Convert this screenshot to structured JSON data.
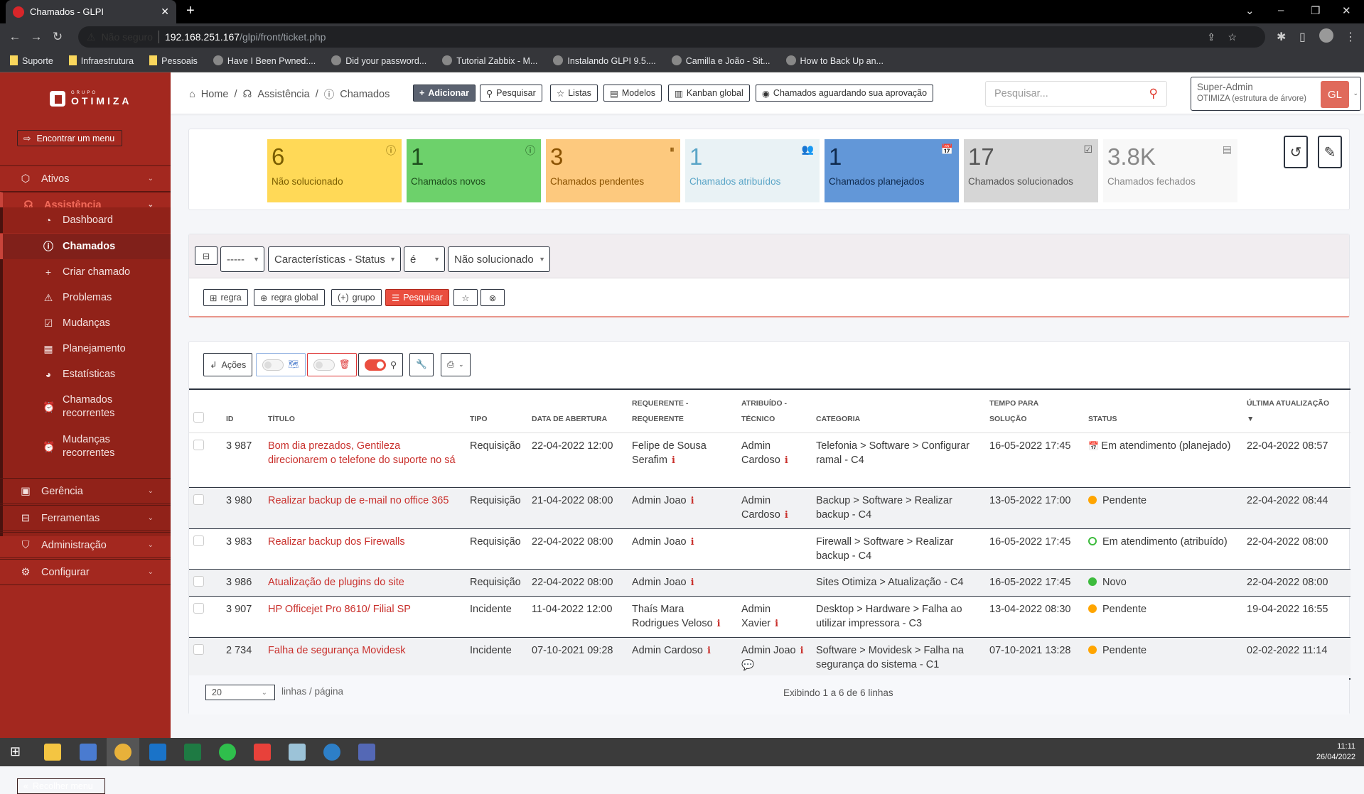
{
  "browser": {
    "tab_title": "Chamados - GLPI",
    "security_label": "Não seguro",
    "url_host": "192.168.251.167",
    "url_path": "/glpi/front/ticket.php",
    "bookmarks": [
      "Suporte",
      "Infraestrutura",
      "Pessoais",
      "Have I Been Pwned:...",
      "Did your password...",
      "Tutorial Zabbix - M...",
      "Instalando GLPI 9.5....",
      "Camilla e João - Sit...",
      "How to Back Up an..."
    ]
  },
  "sidebar": {
    "logo_small": "GRUPO",
    "logo_big": "OTIMIZA",
    "find_menu": "Encontrar um menu",
    "collapse": "Recolher menu",
    "top_items": [
      {
        "label": "Ativos",
        "icon": "cube-icon"
      },
      {
        "label": "Assistência",
        "icon": "headset-icon"
      },
      {
        "label": "Gerência",
        "icon": "wallet-icon"
      },
      {
        "label": "Ferramentas",
        "icon": "briefcase-icon"
      },
      {
        "label": "Administração",
        "icon": "shield-icon"
      },
      {
        "label": "Configurar",
        "icon": "gear-icon"
      }
    ],
    "sub_items": [
      {
        "label": "Dashboard",
        "icon": "gauge-icon"
      },
      {
        "label": "Chamados",
        "icon": "alert-circle-icon",
        "active": true
      },
      {
        "label": "Criar chamado",
        "icon": "plus-icon"
      },
      {
        "label": "Problemas",
        "icon": "warning-icon"
      },
      {
        "label": "Mudanças",
        "icon": "clipboard-check-icon"
      },
      {
        "label": "Planejamento",
        "icon": "calendar-clock-icon"
      },
      {
        "label": "Estatísticas",
        "icon": "pie-chart-icon"
      },
      {
        "label": "Chamados recorrentes",
        "icon": "alarm-icon"
      },
      {
        "label": "Mudanças recorrentes",
        "icon": "alarm-icon"
      }
    ]
  },
  "header": {
    "breadcrumb": [
      "Home",
      "Assistência",
      "Chamados"
    ],
    "buttons": [
      "Adicionar",
      "Pesquisar",
      "Listas",
      "Modelos",
      "Kanban global",
      "Chamados aguardando sua aprovação"
    ],
    "search_placeholder": "Pesquisar...",
    "user_profile": "Super-Admin",
    "user_entity": "OTIMIZA (estrutura de árvore)",
    "avatar_initials": "GL"
  },
  "stats": [
    {
      "value": "6",
      "label": "Não solucionado",
      "bg": "#ffd957",
      "fg": "#7a5d00",
      "icon": "ⓘ"
    },
    {
      "value": "1",
      "label": "Chamados novos",
      "bg": "#6dd16b",
      "fg": "#1d4d1c",
      "icon": "ⓘ"
    },
    {
      "value": "3",
      "label": "Chamados pendentes",
      "bg": "#fdc97e",
      "fg": "#8a5200",
      "icon": "⏸"
    },
    {
      "value": "1",
      "label": "Chamados atribuídos",
      "bg": "#e9f2f5",
      "fg": "#5aa5c7",
      "icon": "👥"
    },
    {
      "value": "1",
      "label": "Chamados planejados",
      "bg": "#6297d8",
      "fg": "#0f2a4d",
      "icon": "📅"
    },
    {
      "value": "17",
      "label": "Chamados solucionados",
      "bg": "#d6d6d6",
      "fg": "#555",
      "icon": "☑"
    },
    {
      "value": "3.8K",
      "label": "Chamados fechados",
      "bg": "#f8f8f8",
      "fg": "#888",
      "icon": "▤"
    }
  ],
  "criteria": {
    "link": "-----",
    "field": "Características - Status",
    "operator": "é",
    "value": "Não solucionado",
    "buttons": [
      "regra",
      "regra global",
      "grupo",
      "Pesquisar"
    ]
  },
  "toolbar": {
    "actions": "Ações"
  },
  "table": {
    "headers": [
      {
        "l1": "",
        "l2": "ID"
      },
      {
        "l1": "",
        "l2": "TÍTULO"
      },
      {
        "l1": "",
        "l2": "TIPO"
      },
      {
        "l1": "",
        "l2": "DATA DE ABERTURA"
      },
      {
        "l1": "REQUERENTE -",
        "l2": "REQUERENTE"
      },
      {
        "l1": "ATRIBUÍDO -",
        "l2": "TÉCNICO"
      },
      {
        "l1": "",
        "l2": "CATEGORIA"
      },
      {
        "l1": "TEMPO PARA",
        "l2": "SOLUÇÃO"
      },
      {
        "l1": "",
        "l2": "STATUS"
      },
      {
        "l1": "ÚLTIMA ATUALIZAÇÃO",
        "l2": "▼"
      }
    ],
    "rows": [
      {
        "id": "3 987",
        "title": "Bom dia prezados, Gentileza direcionarem o telefone do suporte no sá",
        "type": "Requisição",
        "opened": "22-04-2022 12:00",
        "requester": "Felipe de Sousa Serafim",
        "technician": "Admin Cardoso",
        "tech_followup": false,
        "category": "Telefonia > Software > Configurar ramal - C4",
        "due": "16-05-2022 17:45",
        "status": "Em atendimento (planejado)",
        "status_kind": "planned",
        "updated": "22-04-2022 08:57"
      },
      {
        "id": "3 980",
        "title": "Realizar backup de e-mail no office 365",
        "type": "Requisição",
        "opened": "21-04-2022 08:00",
        "requester": "Admin Joao",
        "technician": "Admin Cardoso",
        "tech_followup": false,
        "category": "Backup > Software > Realizar backup - C4",
        "due": "13-05-2022 17:00",
        "status": "Pendente",
        "status_kind": "pending",
        "updated": "22-04-2022 08:44"
      },
      {
        "id": "3 983",
        "title": "Realizar backup dos Firewalls",
        "type": "Requisição",
        "opened": "22-04-2022 08:00",
        "requester": "Admin Joao",
        "technician": "",
        "tech_followup": false,
        "category": "Firewall > Software > Realizar backup - C4",
        "due": "16-05-2022 17:45",
        "status": "Em atendimento (atribuído)",
        "status_kind": "assigned",
        "updated": "22-04-2022 08:00"
      },
      {
        "id": "3 986",
        "title": "Atualização de plugins do site",
        "type": "Requisição",
        "opened": "22-04-2022 08:00",
        "requester": "Admin Joao",
        "technician": "",
        "tech_followup": false,
        "category": "Sites Otimiza > Atualização - C4",
        "due": "16-05-2022 17:45",
        "status": "Novo",
        "status_kind": "new",
        "updated": "22-04-2022 08:00"
      },
      {
        "id": "3 907",
        "title": "HP Officejet Pro 8610/ Filial SP",
        "type": "Incidente",
        "opened": "11-04-2022 12:00",
        "requester": "Thaís Mara Rodrigues Veloso",
        "technician": "Admin Xavier",
        "tech_followup": false,
        "category": "Desktop > Hardware > Falha ao utilizar impressora - C3",
        "due": "13-04-2022 08:30",
        "status": "Pendente",
        "status_kind": "pending",
        "updated": "19-04-2022 16:55"
      },
      {
        "id": "2 734",
        "title": "Falha de segurança Movidesk",
        "type": "Incidente",
        "opened": "07-10-2021 09:28",
        "requester": "Admin Cardoso",
        "technician": "Admin Joao",
        "tech_followup": true,
        "category": "Software > Movidesk > Falha na segurança do sistema - C1",
        "due": "07-10-2021 13:28",
        "status": "Pendente",
        "status_kind": "pending",
        "updated": "02-02-2022 11:14"
      }
    ]
  },
  "pagination": {
    "per_page": "20",
    "per_page_label": "linhas / página",
    "summary": "Exibindo 1 a 6 de 6 linhas"
  },
  "taskbar": {
    "time": "11:11",
    "date": "26/04/2022"
  },
  "colors": {
    "sidebar": "#a3281f",
    "accent": "#ea4e3f",
    "pending": "#ffa500",
    "new": "#3dbb3d"
  }
}
